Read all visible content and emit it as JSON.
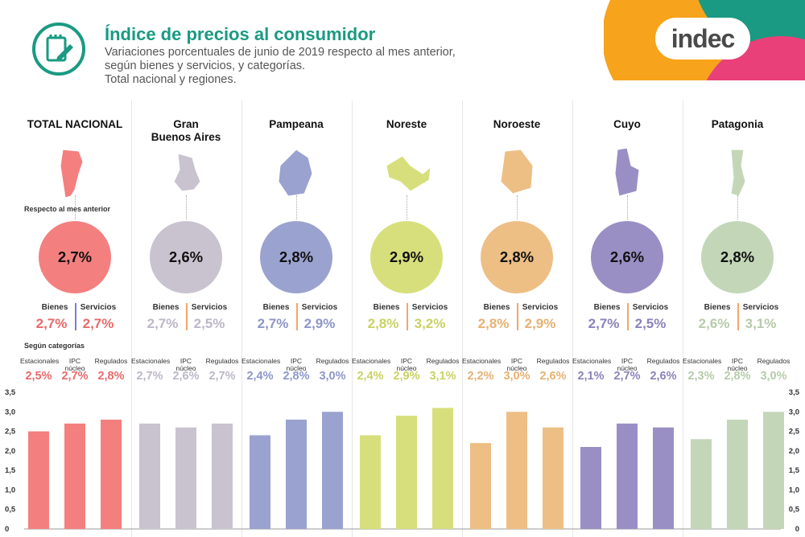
{
  "header": {
    "title": "Índice de precios al consumidor",
    "subtitle": "Variaciones porcentuales de junio de 2019 respecto al mes anterior,\nsegún bienes y servicios, y categorías.\nTotal nacional y regiones.",
    "brand": "indec",
    "brand_colors": [
      "#f7a31c",
      "#e9407a",
      "#1a9a82"
    ]
  },
  "labels": {
    "respecto": "Respecto al mes anterior",
    "segun": "Según categorías",
    "bienes": "Bienes",
    "servicios": "Servicios",
    "estacionales": "Estacionales",
    "ipc_nucleo": "IPC\nnúcleo",
    "regulados": "Regulados"
  },
  "regions": [
    {
      "name": "TOTAL NACIONAL",
      "color": "#f47f7f",
      "total": "2,7%",
      "bienes": "2,7%",
      "servicios": "2,7%",
      "estacionales": "2,5%",
      "ipc_nucleo": "2,7%",
      "regulados": "2,8%",
      "val_color": "#e86a6a",
      "sep_color": "#7b7bd0"
    },
    {
      "name": "Gran\nBuenos Aires",
      "color": "#c9c3d0",
      "total": "2,6%",
      "bienes": "2,7%",
      "servicios": "2,5%",
      "estacionales": "2,7%",
      "ipc_nucleo": "2,6%",
      "regulados": "2,7%",
      "val_color": "#bdb7c6",
      "sep_color": "#f2a76a"
    },
    {
      "name": "Pampeana",
      "color": "#9aa2cf",
      "total": "2,8%",
      "bienes": "2,7%",
      "servicios": "2,9%",
      "estacionales": "2,4%",
      "ipc_nucleo": "2,8%",
      "regulados": "3,0%",
      "val_color": "#8e96c8",
      "sep_color": "#f2a76a"
    },
    {
      "name": "Noreste",
      "color": "#d7df7c",
      "total": "2,9%",
      "bienes": "2,8%",
      "servicios": "3,2%",
      "estacionales": "2,4%",
      "ipc_nucleo": "2,9%",
      "regulados": "3,1%",
      "val_color": "#c9d264",
      "sep_color": "#f2a76a"
    },
    {
      "name": "Noroeste",
      "color": "#edbf85",
      "total": "2,8%",
      "bienes": "2,8%",
      "servicios": "2,9%",
      "estacionales": "2,2%",
      "ipc_nucleo": "3,0%",
      "regulados": "2,6%",
      "val_color": "#e6b173",
      "sep_color": "#f2a76a"
    },
    {
      "name": "Cuyo",
      "color": "#9a8fc4",
      "total": "2,6%",
      "bienes": "2,7%",
      "servicios": "2,5%",
      "estacionales": "2,1%",
      "ipc_nucleo": "2,7%",
      "regulados": "2,6%",
      "val_color": "#8d82bc",
      "sep_color": "#f2a76a"
    },
    {
      "name": "Patagonia",
      "color": "#c3d7b8",
      "total": "2,8%",
      "bienes": "2,6%",
      "servicios": "3,1%",
      "estacionales": "2,3%",
      "ipc_nucleo": "2,8%",
      "regulados": "3,0%",
      "val_color": "#b6cba9",
      "sep_color": "#f2a76a"
    }
  ],
  "chart_data": {
    "type": "bar",
    "title": "Según categorías",
    "ylim": [
      0,
      3.5
    ],
    "yticks": [
      "0",
      "0,5",
      "1,0",
      "1,5",
      "2,0",
      "2,5",
      "3,0",
      "3,5"
    ],
    "categories": [
      "Estacionales",
      "IPC núcleo",
      "Regulados"
    ],
    "series": [
      {
        "name": "TOTAL NACIONAL",
        "values": [
          2.5,
          2.7,
          2.8
        ]
      },
      {
        "name": "Gran Buenos Aires",
        "values": [
          2.7,
          2.6,
          2.7
        ]
      },
      {
        "name": "Pampeana",
        "values": [
          2.4,
          2.8,
          3.0
        ]
      },
      {
        "name": "Noreste",
        "values": [
          2.4,
          2.9,
          3.1
        ]
      },
      {
        "name": "Noroeste",
        "values": [
          2.2,
          3.0,
          2.6
        ]
      },
      {
        "name": "Cuyo",
        "values": [
          2.1,
          2.7,
          2.6
        ]
      },
      {
        "name": "Patagonia",
        "values": [
          2.3,
          2.8,
          3.0
        ]
      }
    ]
  }
}
